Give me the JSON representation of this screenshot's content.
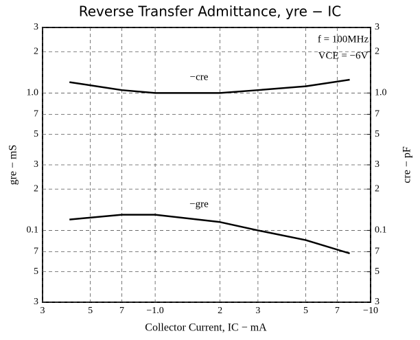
{
  "chart_data": {
    "type": "line",
    "title": "Reverse Transfer Admittance, yre − IC",
    "xlabel": "Collector Current, IC − mA",
    "ylabel": "gre − mS",
    "y2label": "cre − pF",
    "annotations": [
      "f = 100MHz",
      "VCE = −6V",
      "−cre",
      "−gre"
    ],
    "log_x": true,
    "log_y": true,
    "grid": true,
    "xlim": [
      0.3,
      10
    ],
    "ylim": [
      0.03,
      3
    ],
    "y2lim": [
      0.03,
      3
    ],
    "xticks": [
      {
        "value": 0.3,
        "label": "3"
      },
      {
        "value": 0.5,
        "label": "5"
      },
      {
        "value": 0.7,
        "label": "7"
      },
      {
        "value": 1,
        "label": "−1.0"
      },
      2,
      3,
      5,
      7,
      {
        "value": 10,
        "label": "−10"
      }
    ],
    "yticks": [
      3,
      2,
      {
        "value": 1,
        "label": "1.0"
      },
      {
        "value": 0.7,
        "label": "7"
      },
      {
        "value": 0.5,
        "label": "5"
      },
      {
        "value": 0.3,
        "label": "3"
      },
      {
        "value": 0.2,
        "label": "2"
      },
      0.1,
      {
        "value": 0.07,
        "label": "7"
      },
      {
        "value": 0.05,
        "label": "5"
      },
      {
        "value": 0.03,
        "label": "3"
      }
    ],
    "y2ticks": [
      3,
      2,
      {
        "value": 1,
        "label": "1.0"
      },
      {
        "value": 0.7,
        "label": "7"
      },
      {
        "value": 0.5,
        "label": "5"
      },
      {
        "value": 0.3,
        "label": "3"
      },
      {
        "value": 0.2,
        "label": "2"
      },
      0.1,
      {
        "value": 0.07,
        "label": "7"
      },
      {
        "value": 0.05,
        "label": "5"
      },
      {
        "value": 0.03,
        "label": "3"
      }
    ],
    "series": [
      {
        "name": "−cre",
        "color": "#000000",
        "axis": "y2",
        "x": [
          0.4,
          0.7,
          1,
          2,
          3,
          5,
          8
        ],
        "values": [
          1.2,
          1.05,
          1.0,
          1.0,
          1.05,
          1.12,
          1.25
        ]
      },
      {
        "name": "−gre",
        "color": "#000000",
        "x": [
          0.4,
          0.7,
          1,
          2,
          3,
          5,
          8
        ],
        "values": [
          0.12,
          0.13,
          0.13,
          0.115,
          0.1,
          0.085,
          0.068
        ]
      }
    ]
  }
}
